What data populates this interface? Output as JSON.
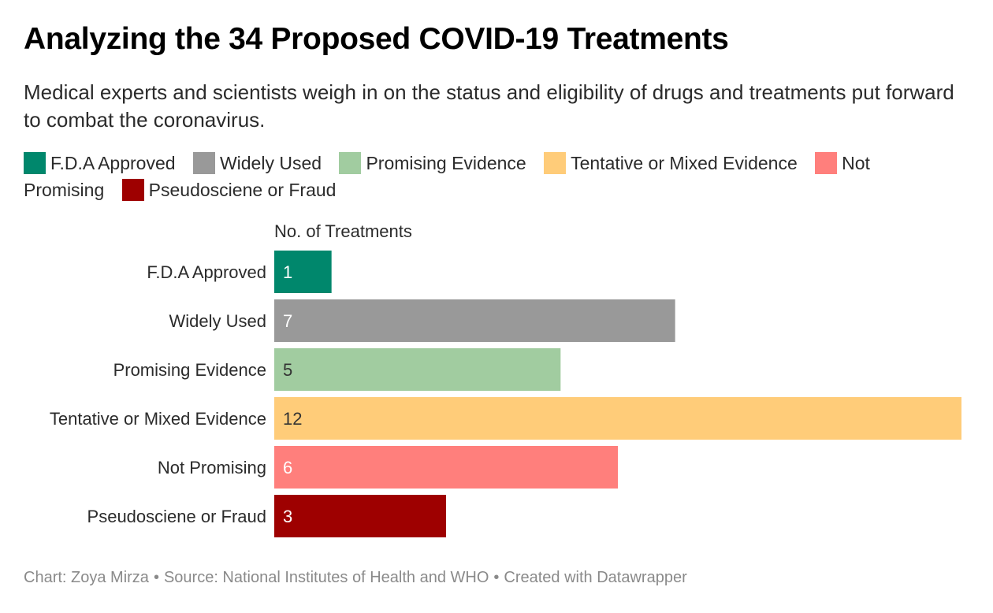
{
  "title": "Analyzing the 34 Proposed COVID-19 Treatments",
  "subtitle": "Medical experts and scientists weigh in on the status and eligibility of drugs and treatments put forward to combat the coronavirus.",
  "legend": [
    {
      "label": "F.D.A Approved",
      "color": "#00876c"
    },
    {
      "label": "Widely Used",
      "color": "#999999"
    },
    {
      "label": "Promising Evidence",
      "color": "#a1cca0"
    },
    {
      "label": "Tentative or Mixed Evidence",
      "color": "#ffcc79"
    },
    {
      "label": "Not Promising",
      "color": "#ff7f7c"
    },
    {
      "label": "Pseudosciene or Fraud",
      "color": "#9e0000"
    }
  ],
  "footer": {
    "chart_credit": "Chart: Zoya Mirza",
    "source": "Source: National Institutes of Health and WHO",
    "created_with": "Created with Datawrapper"
  },
  "chart_data": {
    "type": "bar",
    "orientation": "horizontal",
    "xlabel": "No. of Treatments",
    "ylabel": "",
    "categories": [
      "F.D.A Approved",
      "Widely Used",
      "Promising Evidence",
      "Tentative or Mixed Evidence",
      "Not Promising",
      "Pseudosciene or Fraud"
    ],
    "values": [
      1,
      7,
      5,
      12,
      6,
      3
    ],
    "colors": [
      "#00876c",
      "#999999",
      "#a1cca0",
      "#ffcc79",
      "#ff7f7c",
      "#9e0000"
    ],
    "label_colors": [
      "#ffffff",
      "#ffffff",
      "#333333",
      "#333333",
      "#ffffff",
      "#ffffff"
    ],
    "xlim": [
      0,
      12
    ],
    "grid": false,
    "legend_position": "top"
  }
}
